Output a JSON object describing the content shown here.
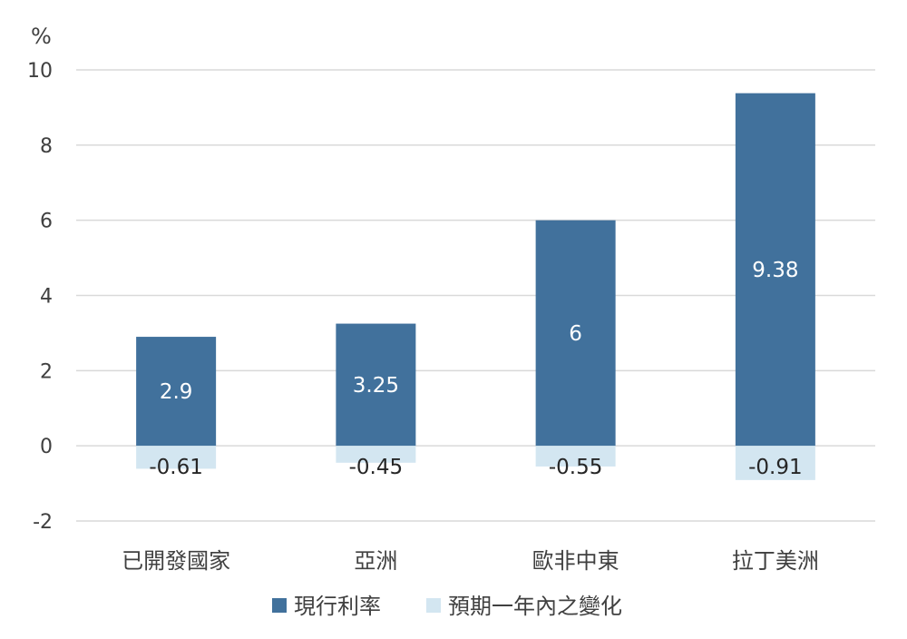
{
  "chart_data": {
    "type": "bar",
    "stacked": true,
    "unit_label": "%",
    "categories": [
      "已開發國家",
      "亞洲",
      "歐非中東",
      "拉丁美洲"
    ],
    "series": [
      {
        "name": "現行利率",
        "values": [
          2.9,
          3.25,
          6,
          9.38
        ],
        "color": "#41719c"
      },
      {
        "name": "預期一年內之變化",
        "values": [
          -0.61,
          -0.45,
          -0.55,
          -0.91
        ],
        "color": "#d3e6f1"
      }
    ],
    "data_labels": [
      [
        "2.9",
        "3.25",
        "6",
        "9.38"
      ],
      [
        "-0.61",
        "-0.45",
        "-0.55",
        "-0.91"
      ]
    ],
    "ylim": [
      -2,
      10
    ],
    "yticks": [
      -2,
      0,
      2,
      4,
      6,
      8,
      10
    ],
    "ytick_labels": [
      "-2",
      "0",
      "2",
      "4",
      "6",
      "8",
      "10"
    ],
    "grid": true,
    "legend_position": "bottom"
  }
}
